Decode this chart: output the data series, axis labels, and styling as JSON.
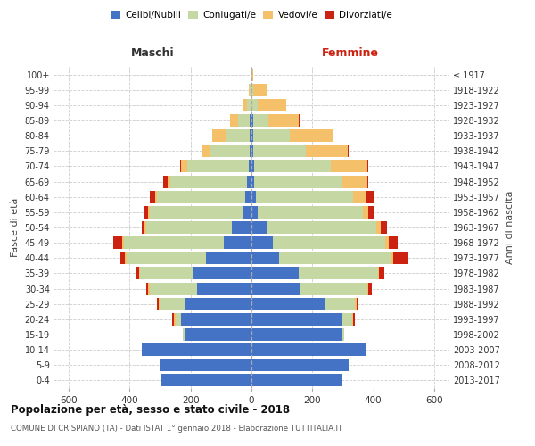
{
  "age_groups": [
    "0-4",
    "5-9",
    "10-14",
    "15-19",
    "20-24",
    "25-29",
    "30-34",
    "35-39",
    "40-44",
    "45-49",
    "50-54",
    "55-59",
    "60-64",
    "65-69",
    "70-74",
    "75-79",
    "80-84",
    "85-89",
    "90-94",
    "95-99",
    "100+"
  ],
  "birth_years": [
    "2013-2017",
    "2008-2012",
    "2003-2007",
    "1998-2002",
    "1993-1997",
    "1988-1992",
    "1983-1987",
    "1978-1982",
    "1973-1977",
    "1968-1972",
    "1963-1967",
    "1958-1962",
    "1953-1957",
    "1948-1952",
    "1943-1947",
    "1938-1942",
    "1933-1937",
    "1928-1932",
    "1923-1927",
    "1918-1922",
    "≤ 1917"
  ],
  "male_celibe": [
    295,
    300,
    360,
    220,
    230,
    220,
    180,
    190,
    150,
    90,
    65,
    30,
    20,
    15,
    10,
    5,
    5,
    5,
    0,
    0,
    0
  ],
  "male_coniugato": [
    0,
    0,
    0,
    5,
    20,
    80,
    155,
    175,
    260,
    330,
    280,
    305,
    290,
    250,
    200,
    130,
    80,
    40,
    15,
    5,
    0
  ],
  "male_vedovo": [
    0,
    0,
    0,
    0,
    5,
    5,
    5,
    5,
    5,
    5,
    5,
    5,
    5,
    10,
    20,
    30,
    45,
    25,
    15,
    5,
    0
  ],
  "male_divorziato": [
    0,
    0,
    0,
    0,
    5,
    5,
    5,
    10,
    15,
    30,
    10,
    15,
    20,
    15,
    5,
    0,
    0,
    0,
    0,
    0,
    0
  ],
  "female_celibe": [
    295,
    320,
    375,
    295,
    300,
    240,
    160,
    155,
    90,
    70,
    50,
    20,
    15,
    10,
    10,
    5,
    5,
    5,
    0,
    0,
    0
  ],
  "female_coniugato": [
    0,
    0,
    0,
    10,
    30,
    100,
    220,
    260,
    370,
    370,
    360,
    345,
    320,
    290,
    250,
    175,
    120,
    50,
    20,
    5,
    0
  ],
  "female_vedovo": [
    0,
    0,
    0,
    0,
    5,
    5,
    5,
    5,
    5,
    10,
    15,
    20,
    40,
    80,
    120,
    135,
    140,
    100,
    95,
    45,
    5
  ],
  "female_divorziato": [
    0,
    0,
    0,
    0,
    5,
    5,
    10,
    15,
    50,
    30,
    20,
    20,
    30,
    5,
    5,
    5,
    5,
    5,
    0,
    0,
    0
  ],
  "colors": {
    "celibe": "#4472C4",
    "coniugato": "#c5d8a4",
    "vedovo": "#f4c06a",
    "divorziato": "#cc2211"
  },
  "xlim": 650,
  "title": "Popolazione per età, sesso e stato civile - 2018",
  "subtitle": "COMUNE DI CRISPIANO (TA) - Dati ISTAT 1° gennaio 2018 - Elaborazione TUTTITALIA.IT",
  "ylabel_left": "Fasce di età",
  "ylabel_right": "Anni di nascita",
  "label_maschi": "Maschi",
  "label_femmine": "Femmine"
}
